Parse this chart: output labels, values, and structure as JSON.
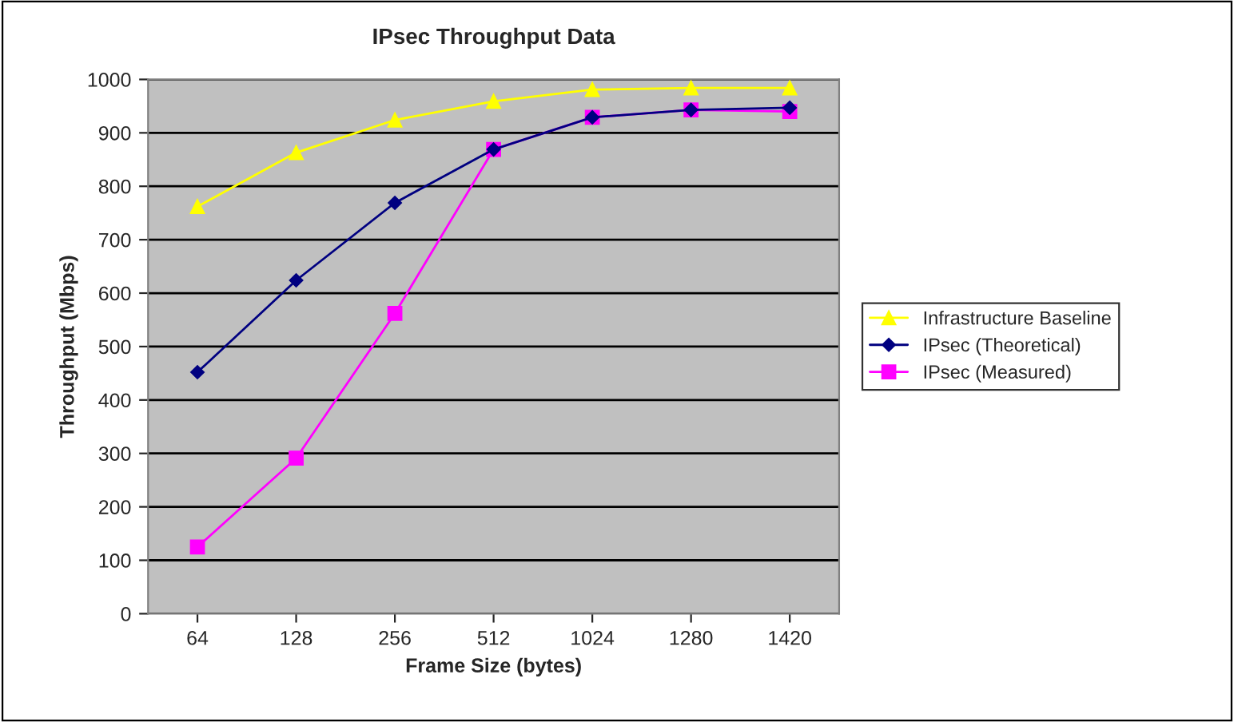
{
  "chart_data": {
    "type": "line",
    "title": "IPsec Throughput Data",
    "xlabel": "Frame Size (bytes)",
    "ylabel": "Throughput (Mbps)",
    "categories": [
      "64",
      "128",
      "256",
      "512",
      "1024",
      "1280",
      "1420"
    ],
    "series": [
      {
        "name": "Infrastructure Baseline",
        "color": "#ffff00",
        "marker": "triangle",
        "values": [
          762,
          863,
          924,
          959,
          981,
          984,
          984
        ]
      },
      {
        "name": "IPsec (Theoretical)",
        "color": "#000080",
        "marker": "diamond",
        "values": [
          452,
          624,
          769,
          869,
          929,
          943,
          947
        ]
      },
      {
        "name": "IPsec (Measured)",
        "color": "#ff00ff",
        "marker": "square",
        "values": [
          125,
          291,
          562,
          869,
          929,
          943,
          940
        ]
      }
    ],
    "ylim": [
      0,
      1000
    ],
    "yticks": [
      0,
      100,
      200,
      300,
      400,
      500,
      600,
      700,
      800,
      900,
      1000
    ],
    "grid": "y",
    "legend": "right",
    "line_style": "solid"
  }
}
